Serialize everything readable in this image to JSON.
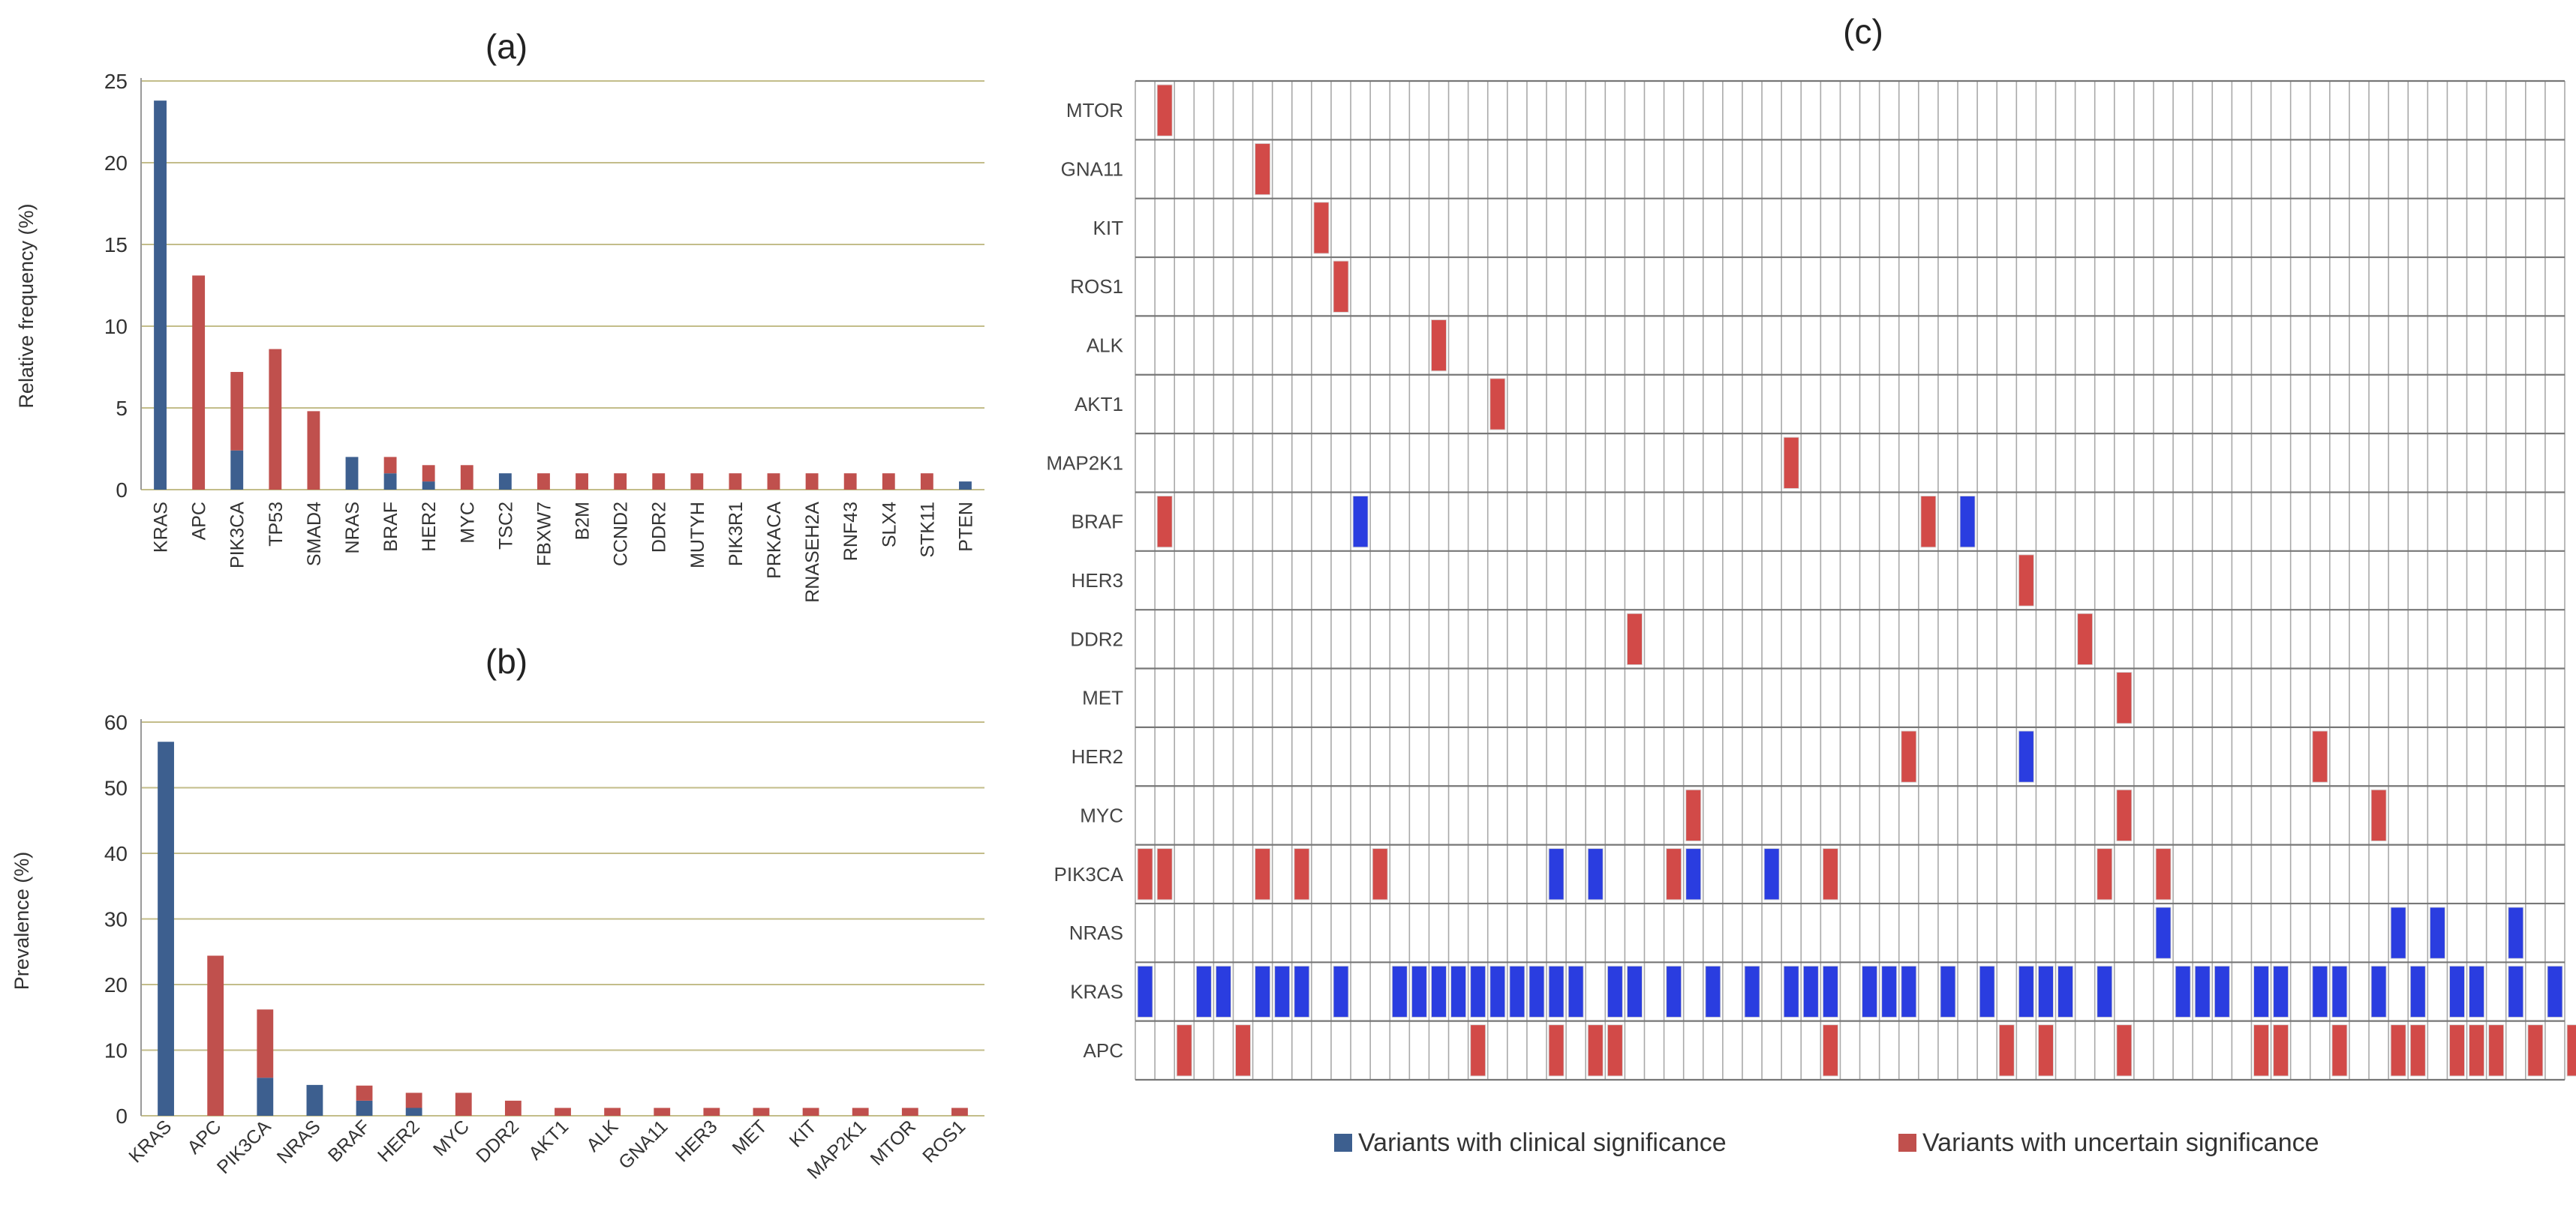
{
  "colors": {
    "clinical": "#3d5f8f",
    "uncertain": "#c0504d",
    "grid": "#c3bd8a",
    "matrix_blue": "#2a3de0",
    "matrix_red": "#d24a48"
  },
  "legend": {
    "clinical": "Variants with clinical significance",
    "uncertain": "Variants with uncertain significance"
  },
  "chart_data": [
    {
      "id": "a",
      "type": "bar",
      "stacked": true,
      "title": "(a)",
      "ylabel": "Relative frequency (%)",
      "ylim": [
        0,
        25
      ],
      "yticks": [
        0,
        5,
        10,
        15,
        20,
        25
      ],
      "categories": [
        "KRAS",
        "APC",
        "PIK3CA",
        "TP53",
        "SMAD4",
        "NRAS",
        "BRAF",
        "HER2",
        "MYC",
        "TSC2",
        "FBXW7",
        "B2M",
        "CCND2",
        "DDR2",
        "MUTYH",
        "PIK3R1",
        "PRKACA",
        "RNASEH2A",
        "RNF43",
        "SLX4",
        "STK11",
        "PTEN"
      ],
      "series": [
        {
          "name": "Variants with clinical significance",
          "values": [
            23.8,
            0,
            2.4,
            0,
            0,
            2.0,
            1.0,
            0.5,
            0,
            1.0,
            0,
            0,
            0,
            0,
            0,
            0,
            0,
            0,
            0,
            0,
            0,
            0.5
          ]
        },
        {
          "name": "Variants with uncertain significance",
          "values": [
            0,
            13.1,
            4.8,
            8.6,
            4.8,
            0,
            1.0,
            1.0,
            1.5,
            0,
            1.0,
            1.0,
            1.0,
            1.0,
            1.0,
            1.0,
            1.0,
            1.0,
            1.0,
            1.0,
            1.0,
            0
          ]
        }
      ]
    },
    {
      "id": "b",
      "type": "bar",
      "stacked": true,
      "title": "(b)",
      "ylabel": "Prevalence (%)",
      "ylim": [
        0,
        60
      ],
      "yticks": [
        0,
        10,
        20,
        30,
        40,
        50,
        60
      ],
      "categories": [
        "KRAS",
        "APC",
        "PIK3CA",
        "NRAS",
        "BRAF",
        "HER2",
        "MYC",
        "DDR2",
        "AKT1",
        "ALK",
        "GNA11",
        "HER3",
        "MET",
        "KIT",
        "MAP2K1",
        "MTOR",
        "ROS1"
      ],
      "series": [
        {
          "name": "Variants with clinical significance",
          "values": [
            57.0,
            0,
            5.8,
            4.7,
            2.3,
            1.2,
            0,
            0,
            0,
            0,
            0,
            0,
            0,
            0,
            0,
            0,
            0
          ]
        },
        {
          "name": "Variants with uncertain significance",
          "values": [
            0,
            24.4,
            10.4,
            0,
            2.3,
            2.3,
            3.5,
            2.3,
            1.2,
            1.2,
            1.2,
            1.2,
            1.2,
            1.2,
            1.2,
            1.2,
            1.2
          ]
        }
      ]
    },
    {
      "id": "c",
      "type": "heatmap",
      "title": "(c)",
      "samples": 73,
      "genes": [
        "MTOR",
        "GNA11",
        "KIT",
        "ROS1",
        "ALK",
        "AKT1",
        "MAP2K1",
        "BRAF",
        "HER3",
        "DDR2",
        "MET",
        "HER2",
        "MYC",
        "PIK3CA",
        "NRAS",
        "KRAS",
        "APC"
      ],
      "clinical": {
        "BRAF": [
          11,
          42
        ],
        "HER2": [
          45
        ],
        "PIK3CA": [
          21,
          23,
          28,
          32
        ],
        "NRAS": [
          52,
          64,
          66,
          70
        ],
        "KRAS": [
          0,
          3,
          4,
          6,
          7,
          8,
          10,
          13,
          14,
          15,
          16,
          17,
          18,
          19,
          20,
          21,
          22,
          24,
          25,
          27,
          29,
          31,
          33,
          34,
          35,
          37,
          38,
          39,
          41,
          43,
          45,
          46,
          47,
          49,
          53,
          54,
          55,
          57,
          58,
          60,
          61,
          63,
          65,
          67,
          68,
          70,
          72
        ]
      },
      "uncertain": {
        "MTOR": [
          1
        ],
        "GNA11": [
          6
        ],
        "KIT": [
          9
        ],
        "ROS1": [
          10
        ],
        "ALK": [
          15
        ],
        "AKT1": [
          18
        ],
        "MAP2K1": [
          33
        ],
        "BRAF": [
          1,
          40
        ],
        "HER3": [
          45
        ],
        "DDR2": [
          25,
          48
        ],
        "MET": [
          50
        ],
        "HER2": [
          39,
          60
        ],
        "MYC": [
          28,
          50,
          63
        ],
        "PIK3CA": [
          0,
          1,
          6,
          8,
          12,
          27,
          35,
          49,
          52
        ],
        "APC": [
          2,
          5,
          17,
          21,
          23,
          24,
          35,
          44,
          46,
          50,
          57,
          58,
          61,
          64,
          65,
          67,
          68,
          69,
          71,
          73
        ]
      }
    }
  ]
}
